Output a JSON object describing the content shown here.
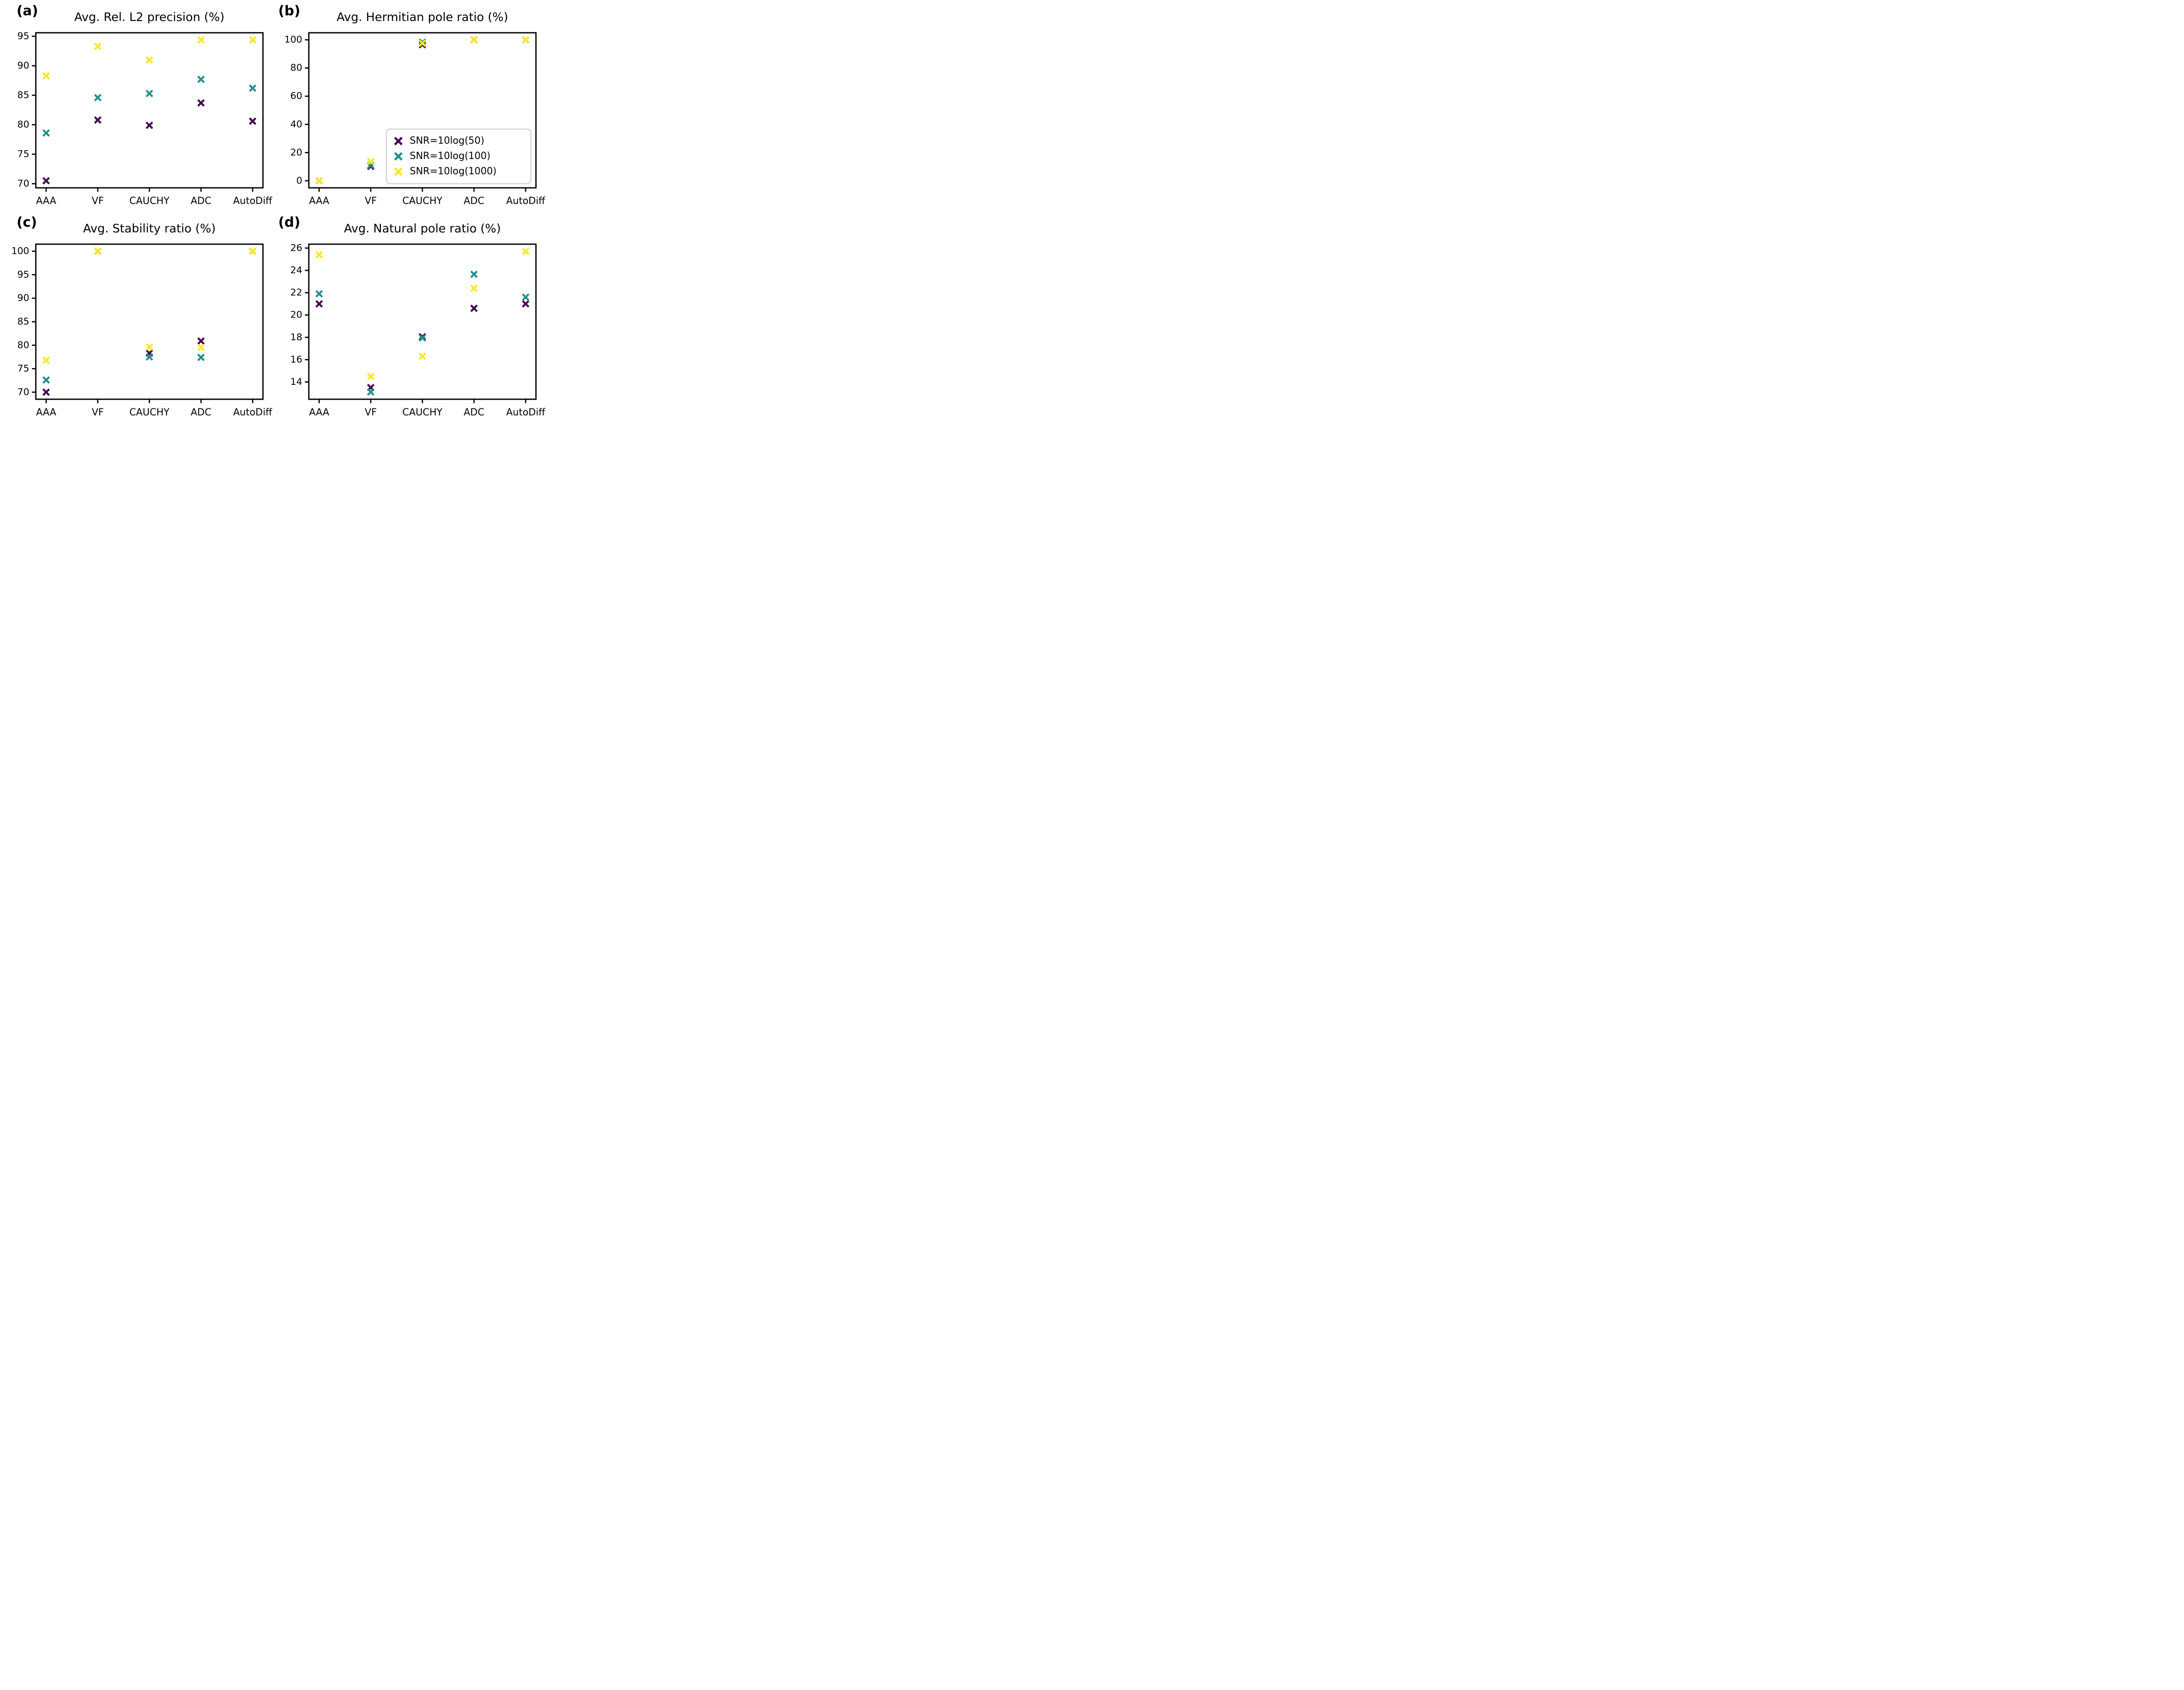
{
  "figure": {
    "background": "#ffffff",
    "axis_color": "#000000"
  },
  "legend": {
    "entries": [
      {
        "label": "SNR=10log(50)",
        "color": "#440154",
        "marker": "x-marker-icon"
      },
      {
        "label": "SNR=10log(100)",
        "color": "#21918c",
        "marker": "x-marker-icon"
      },
      {
        "label": "SNR=10log(1000)",
        "color": "#fde725",
        "marker": "x-marker-icon"
      }
    ],
    "position": "lower-right-of-panel-b",
    "border_color": "#d9d9d9"
  },
  "chart_data": [
    {
      "type": "scatter",
      "panel_label": "(a)",
      "title": "Avg. Rel. L2 precision (%)",
      "categories": [
        "AAA",
        "VF",
        "CAUCHY",
        "ADC",
        "AutoDiff"
      ],
      "xlim": [
        -0.2,
        4.2
      ],
      "ylim": [
        69.3,
        95.6
      ],
      "yticks": [
        70,
        75,
        80,
        85,
        90,
        95
      ],
      "grid": false,
      "series": [
        {
          "name": "SNR=10log(50)",
          "color": "#440154",
          "values": [
            70.5,
            80.8,
            79.9,
            83.7,
            80.6
          ]
        },
        {
          "name": "SNR=10log(100)",
          "color": "#21918c",
          "values": [
            78.6,
            84.6,
            85.3,
            87.7,
            86.2
          ]
        },
        {
          "name": "SNR=10log(1000)",
          "color": "#fde725",
          "values": [
            88.3,
            93.3,
            91.0,
            94.4,
            94.4
          ]
        }
      ]
    },
    {
      "type": "scatter",
      "panel_label": "(b)",
      "title": "Avg. Hermitian pole ratio (%)",
      "categories": [
        "AAA",
        "VF",
        "CAUCHY",
        "ADC",
        "AutoDiff"
      ],
      "xlim": [
        -0.2,
        4.2
      ],
      "ylim": [
        -5,
        105
      ],
      "yticks": [
        0,
        20,
        40,
        60,
        80,
        100
      ],
      "grid": false,
      "legend_here": true,
      "series": [
        {
          "name": "SNR=10log(50)",
          "color": "#440154",
          "values": [
            0.0,
            10.2,
            96.5,
            100.0,
            100.0
          ]
        },
        {
          "name": "SNR=10log(100)",
          "color": "#21918c",
          "values": [
            0.0,
            11.0,
            98.3,
            100.0,
            100.0
          ]
        },
        {
          "name": "SNR=10log(1000)",
          "color": "#fde725",
          "values": [
            0.0,
            13.7,
            97.5,
            100.0,
            100.0
          ]
        }
      ]
    },
    {
      "type": "scatter",
      "panel_label": "(c)",
      "title": "Avg. Stability ratio (%)",
      "categories": [
        "AAA",
        "VF",
        "CAUCHY",
        "ADC",
        "AutoDiff"
      ],
      "xlim": [
        -0.2,
        4.2
      ],
      "ylim": [
        68.5,
        101.5
      ],
      "yticks": [
        70,
        75,
        80,
        85,
        90,
        95,
        100
      ],
      "grid": false,
      "series": [
        {
          "name": "SNR=10log(50)",
          "color": "#440154",
          "values": [
            70.0,
            100.0,
            78.3,
            80.9,
            100.0
          ]
        },
        {
          "name": "SNR=10log(100)",
          "color": "#21918c",
          "values": [
            72.6,
            100.0,
            77.5,
            77.4,
            100.0
          ]
        },
        {
          "name": "SNR=10log(1000)",
          "color": "#fde725",
          "values": [
            76.8,
            100.0,
            79.6,
            79.5,
            100.0
          ]
        }
      ]
    },
    {
      "type": "scatter",
      "panel_label": "(d)",
      "title": "Avg. Natural pole ratio (%)",
      "categories": [
        "AAA",
        "VF",
        "CAUCHY",
        "ADC",
        "AutoDiff"
      ],
      "xlim": [
        -0.2,
        4.2
      ],
      "ylim": [
        12.45,
        26.35
      ],
      "yticks": [
        14,
        16,
        18,
        20,
        22,
        24,
        26
      ],
      "grid": false,
      "series": [
        {
          "name": "SNR=10log(50)",
          "color": "#440154",
          "values": [
            21.0,
            13.5,
            18.05,
            20.6,
            21.0
          ]
        },
        {
          "name": "SNR=10log(100)",
          "color": "#21918c",
          "values": [
            21.9,
            13.1,
            17.95,
            23.65,
            21.6
          ]
        },
        {
          "name": "SNR=10log(1000)",
          "color": "#fde725",
          "values": [
            25.4,
            14.5,
            16.3,
            22.4,
            25.7
          ]
        }
      ]
    }
  ]
}
